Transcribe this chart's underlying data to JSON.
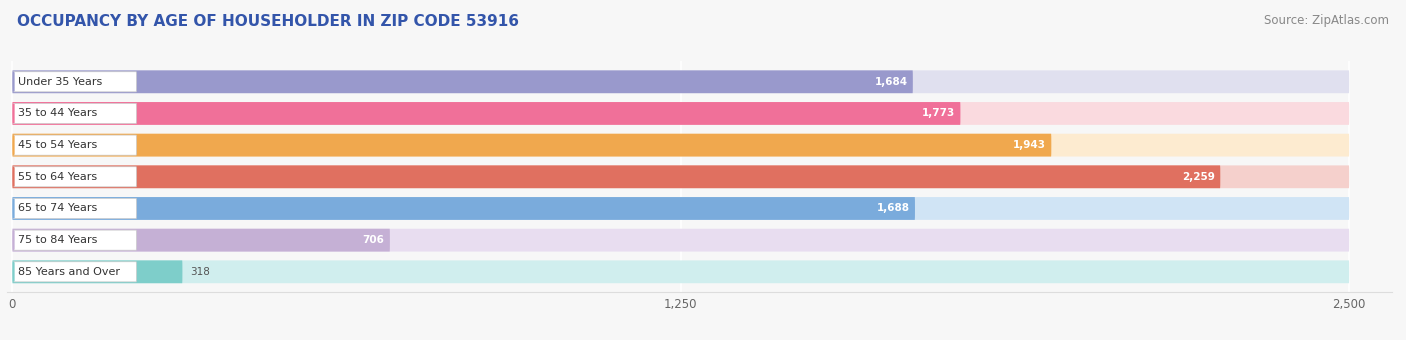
{
  "title": "OCCUPANCY BY AGE OF HOUSEHOLDER IN ZIP CODE 53916",
  "source": "Source: ZipAtlas.com",
  "categories": [
    "Under 35 Years",
    "35 to 44 Years",
    "45 to 54 Years",
    "55 to 64 Years",
    "65 to 74 Years",
    "75 to 84 Years",
    "85 Years and Over"
  ],
  "values": [
    1684,
    1773,
    1943,
    2259,
    1688,
    706,
    318
  ],
  "bar_colors": [
    "#9999cc",
    "#f07099",
    "#f0a84e",
    "#e07060",
    "#7aabdc",
    "#c5b0d5",
    "#7ececa"
  ],
  "bar_bg_colors": [
    "#e0e0ef",
    "#fadadf",
    "#fdebd0",
    "#f5d0cc",
    "#d0e4f5",
    "#e8ddf0",
    "#d0eeee"
  ],
  "label_circle_colors": [
    "#9999cc",
    "#f07099",
    "#f0a84e",
    "#e07060",
    "#7aabdc",
    "#c5b0d5",
    "#7ececa"
  ],
  "xlim": [
    0,
    2500
  ],
  "xticks": [
    0,
    1250,
    2500
  ],
  "title_fontsize": 11,
  "source_fontsize": 8.5,
  "background_color": "#f7f7f7"
}
